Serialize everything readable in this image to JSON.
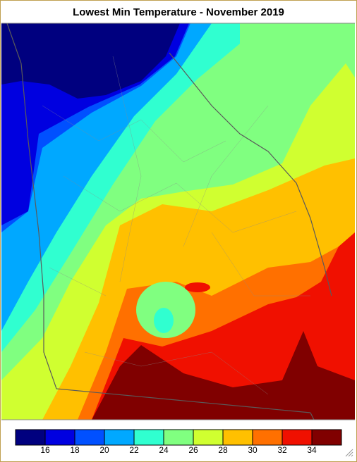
{
  "title": "Lowest Min Temperature - November 2019",
  "legend": {
    "colors": [
      "#00007f",
      "#0000e0",
      "#0050ff",
      "#00a8ff",
      "#30ffd0",
      "#80ff80",
      "#d0ff30",
      "#ffc000",
      "#ff7000",
      "#f01000",
      "#800000"
    ],
    "ticks": [
      16,
      18,
      20,
      22,
      24,
      26,
      28,
      30,
      32,
      34
    ]
  }
}
